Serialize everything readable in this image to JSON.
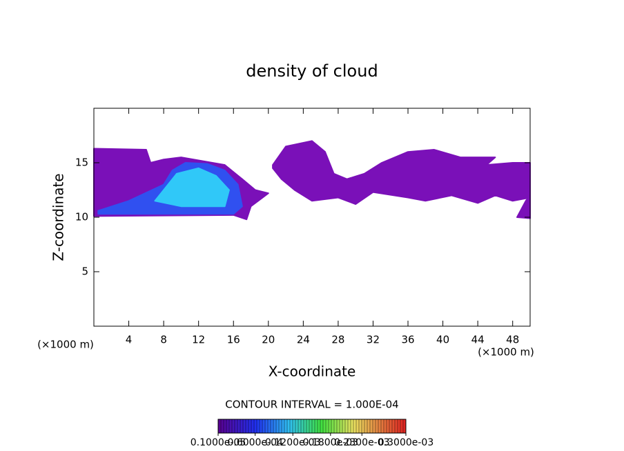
{
  "chart_data": {
    "type": "contour",
    "title": "density of cloud",
    "x_label": "X-coordinate",
    "y_label": "Z-coordinate",
    "x_unit_label": "(×1000 m)",
    "y_unit_label": "(×1000 m)",
    "xlim": [
      0,
      50
    ],
    "ylim": [
      0,
      20
    ],
    "xticks": [
      4,
      8,
      12,
      16,
      20,
      24,
      28,
      32,
      36,
      40,
      44,
      48
    ],
    "yticks": [
      5,
      10,
      15
    ],
    "contour_interval_label": "CONTOUR INTERVAL = 1.000E-04",
    "colorbar_lim": [
      1e-06,
      0.0003
    ],
    "colorbar_ticks": [
      {
        "value": 1e-06,
        "label": "0.1000e-05"
      },
      {
        "value": 6e-05,
        "label": "0.6000e-04"
      },
      {
        "value": 0.00012,
        "label": "0.1200e-03"
      },
      {
        "value": 0.00018,
        "label": "0.1800e-03"
      },
      {
        "value": 0.00023,
        "label": "0.2300e-03"
      },
      {
        "value": 0.0003,
        "label": "0.3000e-03"
      }
    ],
    "regions": [
      {
        "level": 1e-06,
        "color": "#7a10b8",
        "x": [
          0,
          6,
          6.5,
          8,
          10,
          15,
          17,
          18.5,
          20,
          18,
          17.5,
          16,
          0
        ],
        "z": [
          16.3,
          16.2,
          15,
          15.3,
          15.5,
          14.8,
          13.5,
          12.5,
          12.2,
          11,
          9.8,
          10.2,
          10.1
        ]
      },
      {
        "level": 6e-05,
        "color": "#3050f0",
        "x": [
          0.5,
          4,
          8,
          9,
          10.5,
          13,
          15,
          16.5,
          17,
          16,
          8,
          0.5
        ],
        "z": [
          10.6,
          11.5,
          13,
          14.3,
          15,
          14.9,
          14.3,
          13,
          11,
          10.3,
          10.3,
          10.3
        ]
      },
      {
        "level": 0.00012,
        "color": "#30c8f8",
        "x": [
          8,
          9.5,
          12,
          14,
          15.5,
          15,
          10,
          7
        ],
        "z": [
          12.5,
          14,
          14.5,
          13.8,
          12.5,
          11,
          11,
          11.5
        ]
      },
      {
        "level": 1e-06,
        "color": "#7a10b8",
        "x": [
          20.5,
          22,
          25,
          26.5,
          27.5,
          29,
          31,
          33,
          36,
          39,
          42,
          46,
          45,
          48,
          50,
          50,
          48,
          46,
          44,
          41,
          38,
          36,
          32,
          30,
          28,
          25,
          23,
          21.5,
          20.5
        ],
        "z": [
          14.8,
          16.5,
          17,
          16,
          14,
          13.5,
          14,
          15,
          16,
          16.2,
          15.5,
          15.5,
          14.8,
          15,
          15,
          11.8,
          11.5,
          12,
          11.3,
          12,
          11.5,
          11.8,
          12.3,
          11.2,
          11.8,
          11.5,
          12.5,
          13.5,
          14.5
        ]
      },
      {
        "level": 1e-06,
        "color": "#7a10b8",
        "x": [
          48.5,
          49.5,
          50,
          50
        ],
        "z": [
          10,
          11.5,
          12,
          9.9
        ]
      }
    ]
  }
}
